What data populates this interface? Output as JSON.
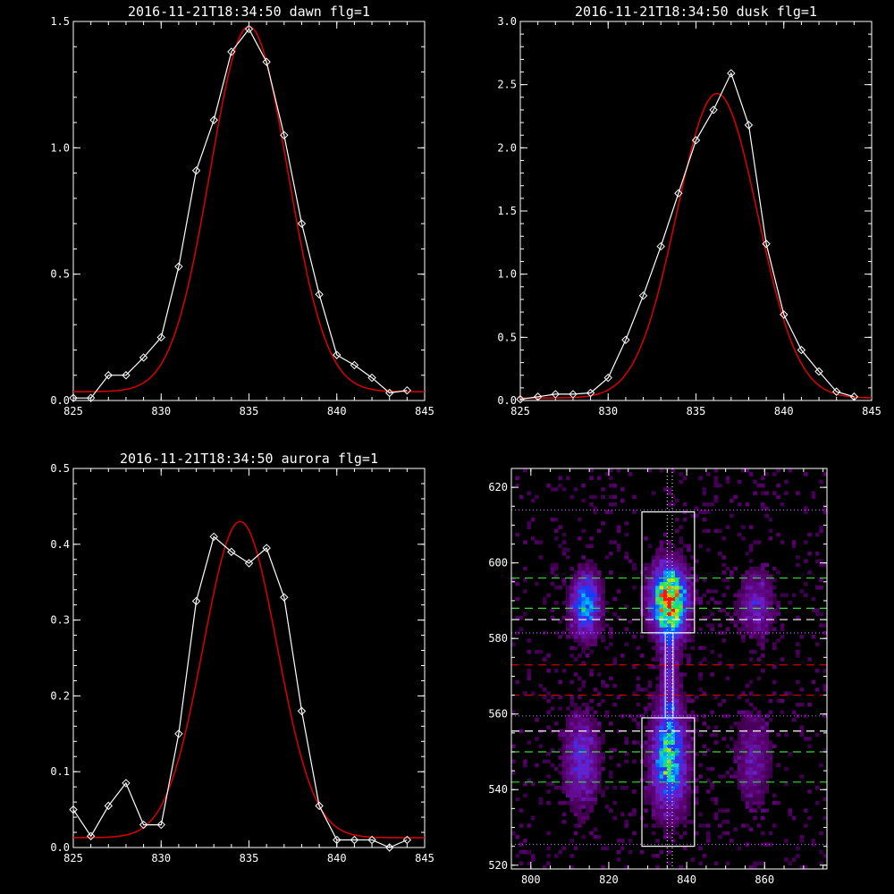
{
  "colors": {
    "background": "#000000",
    "axes": "#ffffff",
    "observed": "#ffffff",
    "fit": "#dd0000"
  },
  "chart_data": [
    {
      "type": "line",
      "title": "2016-11-21T18:34:50 dawn flg=1",
      "xlim": [
        825,
        845
      ],
      "ylim": [
        0,
        1.5
      ],
      "xticks": [
        "825",
        "830",
        "835",
        "840",
        "845"
      ],
      "yticks": [
        "0.0",
        "0.5",
        "1.0",
        "1.5"
      ],
      "series": [
        {
          "type": "line",
          "marker": "diamond",
          "x": [
            825,
            826,
            827,
            828,
            829,
            830,
            831,
            832,
            833,
            834,
            835,
            836,
            837,
            838,
            839,
            840,
            841,
            842,
            843,
            844
          ],
          "y": [
            0.01,
            0.01,
            0.1,
            0.1,
            0.17,
            0.25,
            0.53,
            0.91,
            1.11,
            1.38,
            1.47,
            1.34,
            1.05,
            0.7,
            0.42,
            0.18,
            0.14,
            0.09,
            0.03,
            0.04
          ]
        },
        {
          "type": "fit",
          "peak": 1.48,
          "center": 835.0,
          "sigma": 2.2,
          "base": 0.035
        }
      ]
    },
    {
      "type": "line",
      "title": "2016-11-21T18:34:50 dusk flg=1",
      "xlim": [
        825,
        845
      ],
      "ylim": [
        0,
        3.0
      ],
      "xticks": [
        "825",
        "830",
        "835",
        "840",
        "845"
      ],
      "yticks": [
        "0.0",
        "0.5",
        "1.0",
        "1.5",
        "2.0",
        "2.5",
        "3.0"
      ],
      "series": [
        {
          "type": "line",
          "marker": "diamond",
          "x": [
            825,
            826,
            827,
            828,
            829,
            830,
            831,
            832,
            833,
            834,
            835,
            836,
            837,
            838,
            839,
            840,
            841,
            842,
            843,
            844
          ],
          "y": [
            0.01,
            0.03,
            0.05,
            0.05,
            0.06,
            0.18,
            0.48,
            0.83,
            1.22,
            1.64,
            2.06,
            2.3,
            2.59,
            2.18,
            1.24,
            0.68,
            0.4,
            0.23,
            0.07,
            0.03
          ]
        },
        {
          "type": "fit",
          "peak": 2.43,
          "center": 836.2,
          "sigma": 2.3,
          "base": 0.02
        }
      ]
    },
    {
      "type": "line",
      "title": "2016-11-21T18:34:50 aurora flg=1",
      "xlim": [
        825,
        845
      ],
      "ylim": [
        0,
        0.5
      ],
      "xticks": [
        "825",
        "830",
        "835",
        "840",
        "845"
      ],
      "yticks": [
        "0.0",
        "0.1",
        "0.2",
        "0.3",
        "0.4",
        "0.5"
      ],
      "series": [
        {
          "type": "line",
          "marker": "diamond",
          "x": [
            825,
            826,
            827,
            828,
            829,
            830,
            831,
            832,
            833,
            834,
            835,
            836,
            837,
            838,
            839,
            840,
            841,
            842,
            843,
            844
          ],
          "y": [
            0.05,
            0.015,
            0.055,
            0.085,
            0.03,
            0.03,
            0.15,
            0.325,
            0.41,
            0.39,
            0.375,
            0.395,
            0.33,
            0.18,
            0.055,
            0.01,
            0.01,
            0.01,
            0.0,
            0.01
          ]
        },
        {
          "type": "fit",
          "peak": 0.43,
          "center": 834.5,
          "sigma": 2.1,
          "base": 0.013
        }
      ]
    },
    {
      "type": "heatmap",
      "xlim": [
        795,
        876
      ],
      "ylim": [
        519,
        625
      ],
      "xticks": [
        "800",
        "820",
        "840",
        "860"
      ],
      "yticks": [
        "520",
        "540",
        "560",
        "580",
        "600",
        "620"
      ],
      "blobs": [
        {
          "x": 835.5,
          "y": 590,
          "sx": 3.0,
          "sy": 6.0,
          "amp": 1.0
        },
        {
          "x": 835.5,
          "y": 548,
          "sx": 3.0,
          "sy": 9.0,
          "amp": 0.6
        },
        {
          "x": 814,
          "y": 589,
          "sx": 2.5,
          "sy": 5.5,
          "amp": 0.55
        },
        {
          "x": 813,
          "y": 548,
          "sx": 3.0,
          "sy": 8.0,
          "amp": 0.32
        },
        {
          "x": 858,
          "y": 589,
          "sx": 3.0,
          "sy": 6.0,
          "amp": 0.25
        },
        {
          "x": 857,
          "y": 548,
          "sx": 3.0,
          "sy": 8.0,
          "amp": 0.2
        },
        {
          "x": 835.5,
          "y": 570,
          "sx": 1.6,
          "sy": 12.0,
          "amp": 0.22
        }
      ],
      "boxes": [
        {
          "x": [
            828.5,
            842
          ],
          "y": [
            581.5,
            613.5
          ]
        },
        {
          "x": [
            828.5,
            842
          ],
          "y": [
            525,
            559
          ]
        }
      ],
      "connector": {
        "x": [
          834.5,
          836.5
        ],
        "y": [
          559,
          581.5
        ]
      },
      "hlines": [
        {
          "y": 614,
          "color": "#c060ff",
          "style": "dotted"
        },
        {
          "y": 596,
          "color": "#33dd33",
          "style": "dashed"
        },
        {
          "y": 588,
          "color": "#33dd33",
          "style": "dashed"
        },
        {
          "y": 585,
          "color": "#ffffff",
          "style": "dashed"
        },
        {
          "y": 581.5,
          "color": "#c060ff",
          "style": "dotted"
        },
        {
          "y": 573,
          "color": "#cc0000",
          "style": "dashed"
        },
        {
          "y": 565,
          "color": "#cc0000",
          "style": "dashed"
        },
        {
          "y": 559.5,
          "color": "#c060ff",
          "style": "dotted"
        },
        {
          "y": 555.5,
          "color": "#ffffff",
          "style": "dashed"
        },
        {
          "y": 550,
          "color": "#33dd33",
          "style": "dashed"
        },
        {
          "y": 542,
          "color": "#33dd33",
          "style": "dashed"
        },
        {
          "y": 525.5,
          "color": "#c060ff",
          "style": "dotted"
        }
      ],
      "vlines": [
        {
          "x": 835,
          "color": "#ffffff",
          "style": "dotted"
        },
        {
          "x": 836.3,
          "color": "#ffffff",
          "style": "dotted"
        }
      ]
    }
  ]
}
